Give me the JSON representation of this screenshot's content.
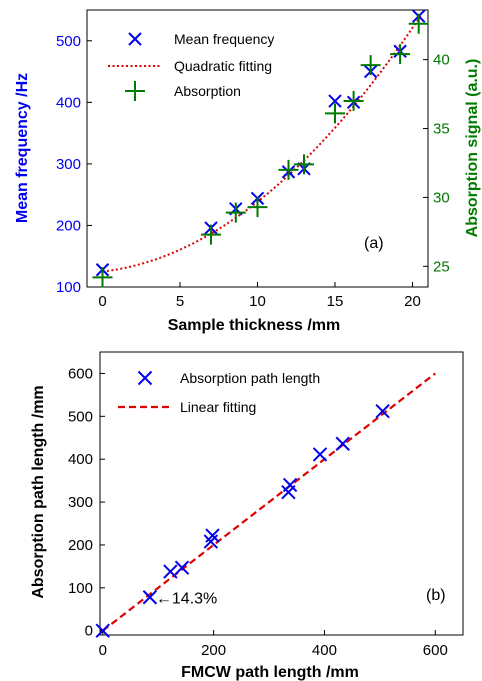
{
  "colors": {
    "blue": "#0000ee",
    "green": "#007a00",
    "red": "#e00000",
    "black": "#000000"
  },
  "chart_data": [
    {
      "type": "scatter",
      "panel_label": "(a)",
      "xlabel": "Sample thickness /mm",
      "ylabel": "Mean frequency /Hz",
      "y2label": "Absorption signal (a.u.)",
      "xlim": [
        -1,
        21
      ],
      "ylim": [
        100,
        550
      ],
      "y2lim": [
        23.5,
        43.6
      ],
      "xticks": [
        0,
        5,
        10,
        15,
        20
      ],
      "yticks": [
        100,
        200,
        300,
        400,
        500
      ],
      "y2ticks": [
        25,
        30,
        35,
        40
      ],
      "legend_position": "top-left",
      "series": [
        {
          "name": "Mean frequency",
          "marker": "x",
          "color": "#0000ee",
          "axis": "left",
          "x": [
            0,
            7,
            8.6,
            10,
            12,
            13,
            15,
            16.2,
            17.3,
            19.2,
            20.4
          ],
          "y": [
            128,
            196,
            227,
            244,
            287,
            292,
            402,
            400,
            450,
            483,
            540
          ]
        },
        {
          "name": "Quadratic fitting",
          "line": "dotted",
          "color": "#e00000",
          "axis": "left",
          "coefficients": [
            125,
            2.9,
            0.845
          ]
        },
        {
          "name": "Absorption",
          "marker": "+",
          "color": "#007a00",
          "axis": "right",
          "x": [
            0,
            7,
            8.6,
            10,
            12,
            13,
            15,
            16.2,
            17.3,
            19.2,
            20.4
          ],
          "y": [
            24.2,
            27.3,
            28.9,
            29.3,
            32.0,
            32.4,
            36.1,
            37.0,
            39.6,
            40.4,
            42.6
          ]
        }
      ]
    },
    {
      "type": "scatter",
      "panel_label": "(b)",
      "xlabel": "FMCW path length /mm",
      "ylabel": "Absorption path length /mm",
      "xlim": [
        -5,
        650
      ],
      "ylim": [
        -10,
        650
      ],
      "xticks": [
        0,
        200,
        400,
        600
      ],
      "yticks": [
        0,
        100,
        200,
        300,
        400,
        500,
        600
      ],
      "legend_position": "top-left",
      "annotation": {
        "text": "←14.3%",
        "x": 85,
        "y": 78
      },
      "series": [
        {
          "name": "Absorption path length",
          "marker": "x",
          "color": "#0000ee",
          "x": [
            0,
            85,
            122,
            143,
            195,
            198,
            335,
            338,
            392,
            433,
            505
          ],
          "y": [
            0,
            78,
            138,
            147,
            208,
            222,
            323,
            340,
            411,
            436,
            512
          ]
        },
        {
          "name": "Linear fitting",
          "line": "dashed",
          "color": "#e00000",
          "x": [
            0,
            600
          ],
          "y": [
            0,
            600
          ]
        }
      ]
    }
  ]
}
